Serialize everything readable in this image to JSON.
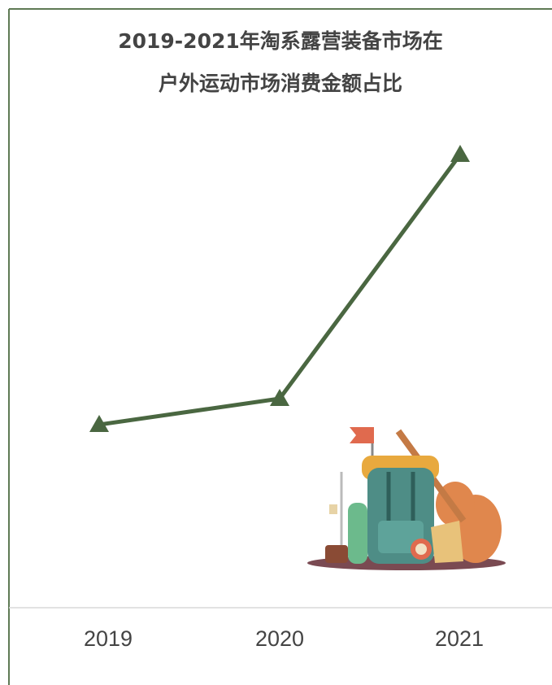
{
  "chart_data": {
    "type": "line",
    "title": [
      "2019-2021年淘系露营装备市场在",
      "户外运动市场消费金额占比"
    ],
    "categories": [
      "2019",
      "2020",
      "2021"
    ],
    "values": [
      225,
      257,
      557
    ],
    "color": "#4a6741",
    "ylim": [
      0,
      600
    ]
  }
}
